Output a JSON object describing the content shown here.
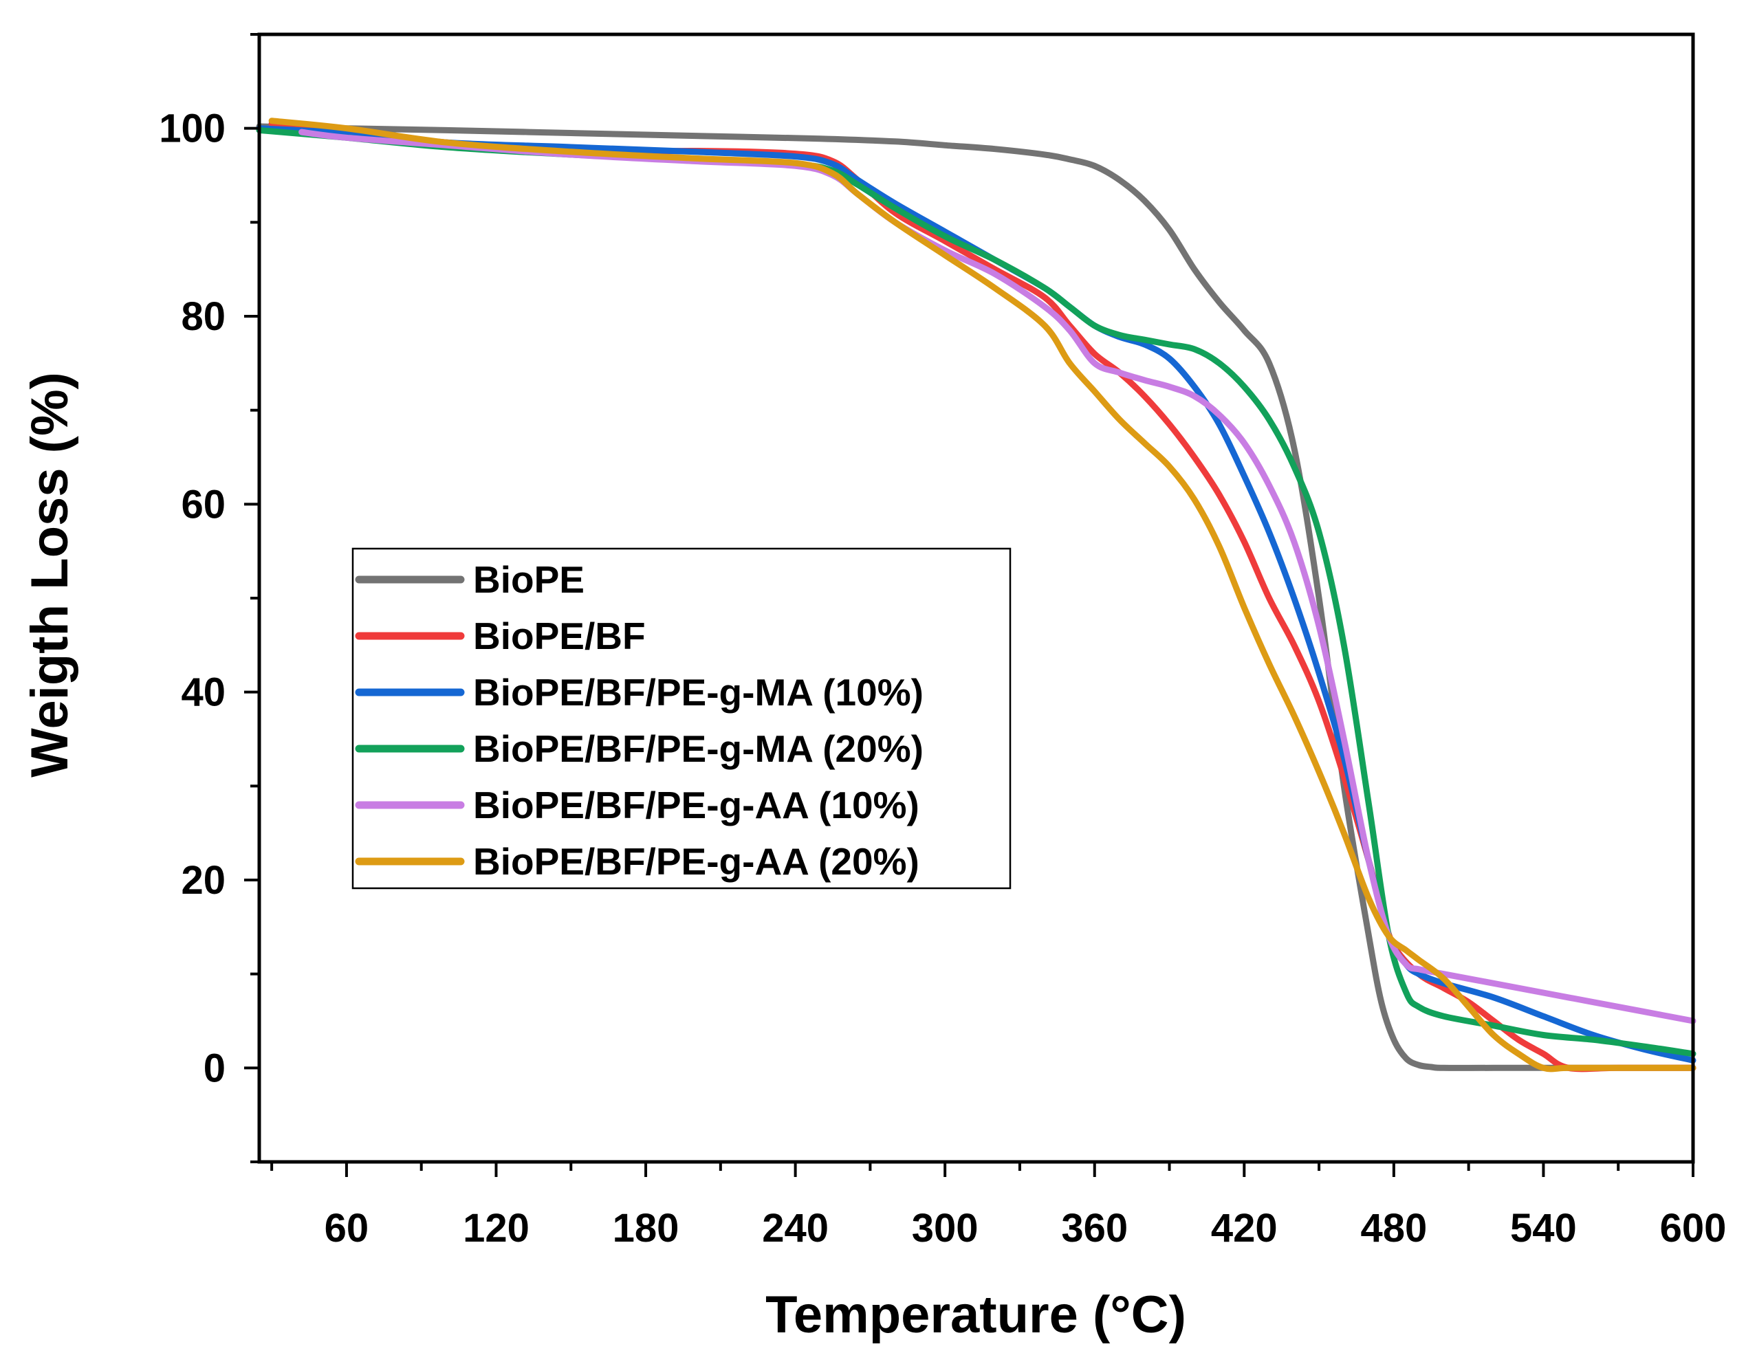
{
  "chart_data": {
    "type": "line",
    "xlabel": "Temperature (°C)",
    "ylabel": "Weigth Loss (%)",
    "xlim": [
      25,
      600
    ],
    "ylim": [
      -10,
      110
    ],
    "xticks": [
      60,
      120,
      180,
      240,
      300,
      360,
      420,
      480,
      540,
      600
    ],
    "xtick_labels": [
      "60",
      "120",
      "180",
      "240",
      "300",
      "360",
      "420",
      "480",
      "540",
      "600"
    ],
    "yticks": [
      0,
      20,
      40,
      60,
      80,
      100
    ],
    "ytick_labels": [
      "0",
      "20",
      "40",
      "60",
      "80",
      "100"
    ],
    "legend_position": "center-left",
    "series": [
      {
        "name": "BioPE",
        "color": "#737373",
        "x": [
          25,
          60,
          100,
          150,
          200,
          250,
          280,
          300,
          320,
          340,
          350,
          360,
          370,
          380,
          390,
          400,
          410,
          420,
          430,
          440,
          450,
          460,
          470,
          475,
          480,
          485,
          490,
          495,
          500,
          520,
          560,
          600
        ],
        "y": [
          100.2,
          100,
          99.8,
          99.5,
          99.2,
          98.9,
          98.6,
          98.2,
          97.8,
          97.2,
          96.7,
          96,
          94.5,
          92.3,
          89.2,
          85,
          81.5,
          78.5,
          75,
          66,
          50,
          30,
          14,
          7,
          3,
          1,
          0.3,
          0.1,
          0,
          0,
          0,
          0
        ]
      },
      {
        "name": "BioPE/BF",
        "color": "#ef3b3b",
        "x": [
          30,
          60,
          100,
          150,
          200,
          240,
          255,
          265,
          280,
          300,
          320,
          340,
          350,
          360,
          370,
          380,
          390,
          400,
          410,
          420,
          430,
          440,
          450,
          460,
          470,
          475,
          480,
          490,
          500,
          510,
          520,
          530,
          540,
          550,
          570,
          600
        ],
        "y": [
          100.5,
          99.5,
          98.5,
          97.5,
          97.6,
          97.3,
          96.5,
          94.5,
          91,
          88,
          85,
          82,
          79,
          76,
          74,
          71.5,
          68.5,
          65,
          61,
          56,
          50,
          45,
          39,
          31,
          22,
          17,
          13,
          10,
          8.5,
          7,
          5,
          3,
          1.5,
          0,
          0,
          0
        ]
      },
      {
        "name": "BioPE/BF/PE-g-MA (10%)",
        "color": "#1567d3",
        "x": [
          25,
          60,
          100,
          150,
          200,
          240,
          255,
          265,
          280,
          300,
          320,
          340,
          350,
          360,
          370,
          380,
          390,
          400,
          410,
          420,
          430,
          440,
          450,
          460,
          470,
          478,
          485,
          490,
          500,
          520,
          540,
          560,
          580,
          600
        ],
        "y": [
          100,
          99.5,
          98.5,
          98,
          97.5,
          97,
          96.2,
          94.5,
          92,
          89,
          86,
          83,
          81,
          79,
          77.8,
          77,
          75.5,
          72.5,
          68.5,
          63,
          57,
          50,
          42,
          33,
          22,
          14,
          11,
          10,
          9,
          7.5,
          5.5,
          3.5,
          2,
          0.8
        ]
      },
      {
        "name": "BioPE/BF/PE-g-MA (20%)",
        "color": "#12a15a",
        "x": [
          25,
          60,
          100,
          150,
          200,
          240,
          255,
          265,
          280,
          300,
          320,
          340,
          350,
          360,
          370,
          380,
          390,
          400,
          410,
          420,
          430,
          440,
          450,
          460,
          470,
          478,
          485,
          490,
          500,
          520,
          540,
          560,
          580,
          600
        ],
        "y": [
          99.8,
          99,
          98,
          97.2,
          96.6,
          96.2,
          95.5,
          94,
          91.5,
          88.5,
          86,
          83,
          81,
          79,
          78,
          77.5,
          77,
          76.5,
          75,
          72.5,
          69,
          64,
          57,
          45,
          28,
          14,
          8,
          6.5,
          5.5,
          4.5,
          3.5,
          3,
          2.3,
          1.5
        ]
      },
      {
        "name": "BioPE/BF/PE-g-AA (10%)",
        "color": "#c87de3",
        "x": [
          42,
          60,
          100,
          150,
          200,
          240,
          255,
          265,
          280,
          300,
          320,
          340,
          350,
          360,
          370,
          380,
          390,
          400,
          410,
          420,
          430,
          440,
          450,
          460,
          470,
          478,
          485,
          490,
          500,
          520,
          540,
          560,
          580,
          600
        ],
        "y": [
          99.6,
          99,
          98.2,
          97.2,
          96.5,
          96,
          95,
          93,
          90,
          87,
          84.5,
          81,
          78.5,
          75,
          74,
          73.2,
          72.5,
          71.5,
          69.5,
          66.5,
          62,
          56,
          47,
          35,
          22,
          14,
          11,
          10.5,
          10,
          9,
          8,
          7,
          6,
          5
        ]
      },
      {
        "name": "BioPE/BF/PE-g-AA (20%)",
        "color": "#dd9b14",
        "x": [
          30,
          60,
          100,
          150,
          200,
          240,
          255,
          265,
          280,
          300,
          320,
          340,
          350,
          360,
          370,
          380,
          390,
          400,
          410,
          420,
          430,
          440,
          450,
          460,
          470,
          478,
          485,
          490,
          500,
          510,
          520,
          530,
          540,
          550,
          570,
          600
        ],
        "y": [
          100.8,
          100,
          98.5,
          97.5,
          96.8,
          96.3,
          95.2,
          93,
          90,
          86.5,
          83,
          79,
          75,
          72,
          69,
          66.5,
          64,
          60.5,
          55.5,
          49,
          43,
          37.5,
          31.5,
          25,
          18,
          14,
          12.5,
          11.5,
          9.5,
          6.5,
          3.5,
          1.5,
          0,
          0,
          0,
          0
        ]
      }
    ]
  }
}
